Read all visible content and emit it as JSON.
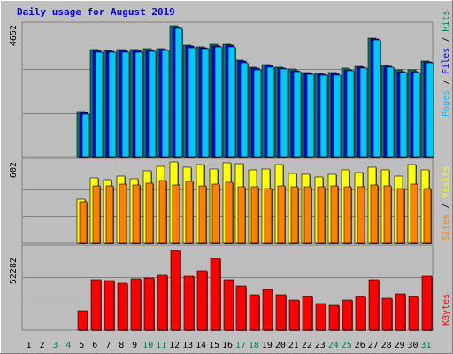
{
  "chart_data": {
    "type": "bar",
    "title": "Daily usage for August 2019",
    "categories": [
      "1",
      "2",
      "3",
      "4",
      "5",
      "6",
      "7",
      "8",
      "9",
      "10",
      "11",
      "12",
      "13",
      "14",
      "15",
      "16",
      "17",
      "18",
      "19",
      "20",
      "21",
      "22",
      "23",
      "24",
      "25",
      "26",
      "27",
      "28",
      "29",
      "30",
      "31"
    ],
    "weekend_days": [
      "3",
      "4",
      "10",
      "11",
      "17",
      "18",
      "24",
      "25",
      "31"
    ],
    "panels": [
      {
        "name": "hits-pages",
        "ymax_label": "4652",
        "ylim": [
          0,
          4652
        ],
        "axis_legend": [
          "Pages",
          "Files",
          "Hits"
        ],
        "series": [
          {
            "name": "Hits",
            "color": "#00805c",
            "values": [
              null,
              null,
              null,
              null,
              1600,
              3800,
              3780,
              3800,
              3800,
              3820,
              3850,
              4652,
              3960,
              3900,
              3980,
              3990,
              3420,
              3170,
              3270,
              3180,
              3100,
              2990,
              2960,
              2980,
              3130,
              3220,
              4220,
              3240,
              3070,
              3070,
              3400
            ]
          },
          {
            "name": "Files",
            "color": "#0000ff",
            "values": [
              null,
              null,
              null,
              null,
              1560,
              3760,
              3740,
              3760,
              3760,
              3780,
              3810,
              4600,
              3920,
              3860,
              3940,
              3950,
              3380,
              3130,
              3230,
              3140,
              3060,
              2950,
              2920,
              2940,
              3090,
              3180,
              4180,
              3200,
              3030,
              3030,
              3360
            ]
          },
          {
            "name": "Pages",
            "color": "#00c8f8",
            "values": [
              null,
              null,
              null,
              null,
              1520,
              3720,
              3700,
              3720,
              3720,
              3740,
              3770,
              4560,
              3880,
              3820,
              3900,
              3910,
              3340,
              3090,
              3190,
              3100,
              3020,
              2910,
              2880,
              2900,
              3050,
              3140,
              4140,
              3160,
              2990,
              2990,
              3320
            ]
          }
        ]
      },
      {
        "name": "visits-sites",
        "ymax_label": "602",
        "ylim": [
          0,
          602
        ],
        "axis_legend": [
          "Sites",
          "Visits"
        ],
        "series": [
          {
            "name": "Visits",
            "color": "#ffff00",
            "values": [
              null,
              null,
              null,
              null,
              325,
              485,
              472,
              495,
              480,
              537,
              568,
              602,
              562,
              580,
              550,
              598,
              590,
              540,
              548,
              585,
              518,
              508,
              490,
              512,
              542,
              523,
              565,
              540,
              495,
              580,
              545
            ]
          },
          {
            "name": "Sites",
            "color": "#ff8000",
            "values": [
              null,
              null,
              null,
              null,
              310,
              425,
              425,
              438,
              435,
              445,
              465,
              430,
              458,
              425,
              440,
              450,
              420,
              420,
              408,
              425,
              420,
              418,
              418,
              425,
              420,
              418,
              430,
              428,
              405,
              436,
              408
            ]
          }
        ]
      },
      {
        "name": "kbytes",
        "ymax_label": "52282",
        "ylim": [
          0,
          52282
        ],
        "axis_legend": [
          "KBytes"
        ],
        "series": [
          {
            "name": "KBytes",
            "color": "#ff0000",
            "values": [
              null,
              null,
              null,
              null,
              13000,
              33000,
              32700,
              31000,
              33500,
              34000,
              36000,
              52282,
              35500,
              39000,
              47000,
              33000,
              29000,
              23500,
              26500,
              23200,
              20000,
              22000,
              17500,
              16500,
              20000,
              22000,
              33000,
              21000,
              23800,
              22000,
              35500
            ]
          }
        ]
      }
    ]
  }
}
